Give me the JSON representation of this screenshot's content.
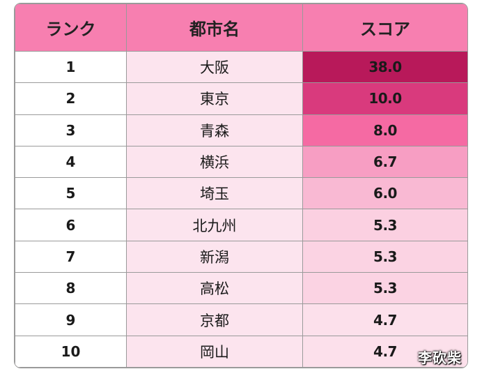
{
  "table": {
    "headers": {
      "rank": "ランク",
      "city": "都市名",
      "score": "スコア"
    },
    "rows": [
      {
        "rank": "1",
        "city": "大阪",
        "score": "38.0",
        "score_bg": "#b8195a"
      },
      {
        "rank": "2",
        "city": "東京",
        "score": "10.0",
        "score_bg": "#d93a7d"
      },
      {
        "rank": "3",
        "city": "青森",
        "score": "8.0",
        "score_bg": "#f56aa3"
      },
      {
        "rank": "4",
        "city": "横浜",
        "score": "6.7",
        "score_bg": "#f79ec3"
      },
      {
        "rank": "5",
        "city": "埼玉",
        "score": "6.0",
        "score_bg": "#f9b9d3"
      },
      {
        "rank": "6",
        "city": "北九州",
        "score": "5.3",
        "score_bg": "#fbd0e1"
      },
      {
        "rank": "7",
        "city": "新潟",
        "score": "5.3",
        "score_bg": "#fbd3e3"
      },
      {
        "rank": "8",
        "city": "高松",
        "score": "5.3",
        "score_bg": "#fbd3e3"
      },
      {
        "rank": "9",
        "city": "京都",
        "score": "4.7",
        "score_bg": "#fce0eb"
      },
      {
        "rank": "10",
        "city": "岡山",
        "score": "4.7",
        "score_bg": "#fce0eb"
      }
    ]
  },
  "colors": {
    "header_bg": "#f77fb0",
    "city_bg": "#fce4ee",
    "rank_bg": "#ffffff",
    "border": "#9a9a9a"
  },
  "watermark": "李砍柴"
}
